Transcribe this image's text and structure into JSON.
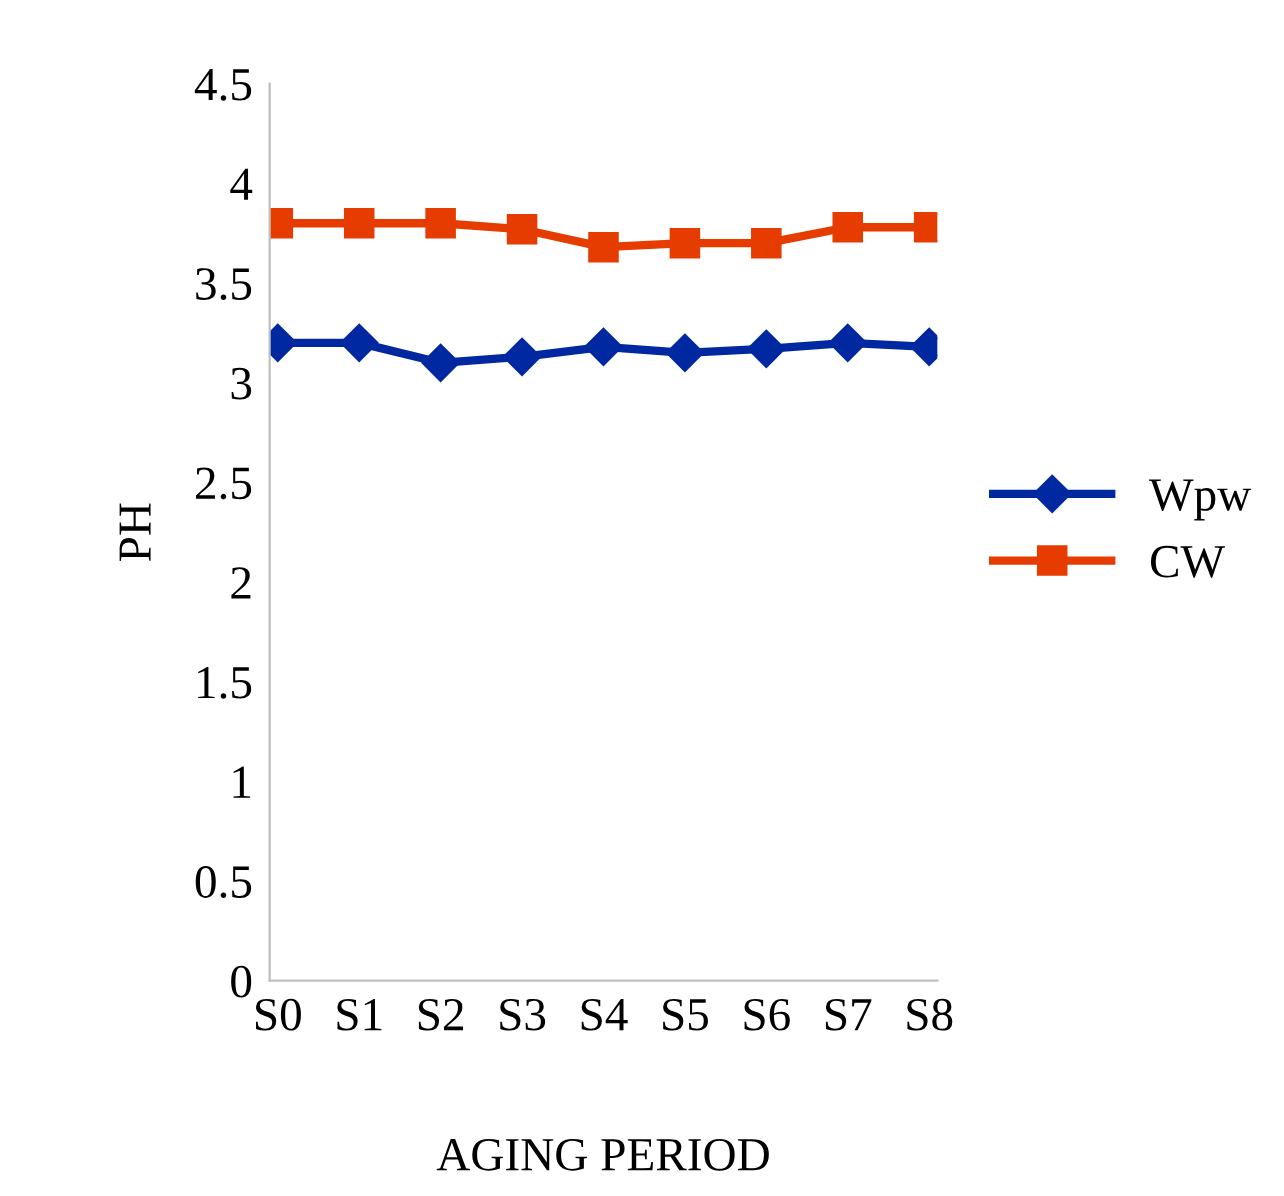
{
  "chart_data": {
    "type": "line",
    "xlabel": "AGING PERIOD",
    "ylabel": "PH",
    "categories": [
      "S0",
      "S1",
      "S2",
      "S3",
      "S4",
      "S5",
      "S6",
      "S7",
      "S8"
    ],
    "series": [
      {
        "name": "Wpw",
        "color": "#0028a0",
        "marker": "diamond",
        "values": [
          3.2,
          3.2,
          3.1,
          3.13,
          3.18,
          3.15,
          3.17,
          3.2,
          3.18
        ]
      },
      {
        "name": "CW",
        "color": "#e63c00",
        "marker": "square",
        "values": [
          3.8,
          3.8,
          3.8,
          3.77,
          3.68,
          3.7,
          3.7,
          3.78,
          3.78
        ]
      }
    ],
    "ylim": [
      0,
      4.5
    ],
    "yticks": [
      0,
      0.5,
      1,
      1.5,
      2,
      2.5,
      3,
      3.5,
      4,
      4.5
    ],
    "grid": false,
    "legend": "right"
  }
}
